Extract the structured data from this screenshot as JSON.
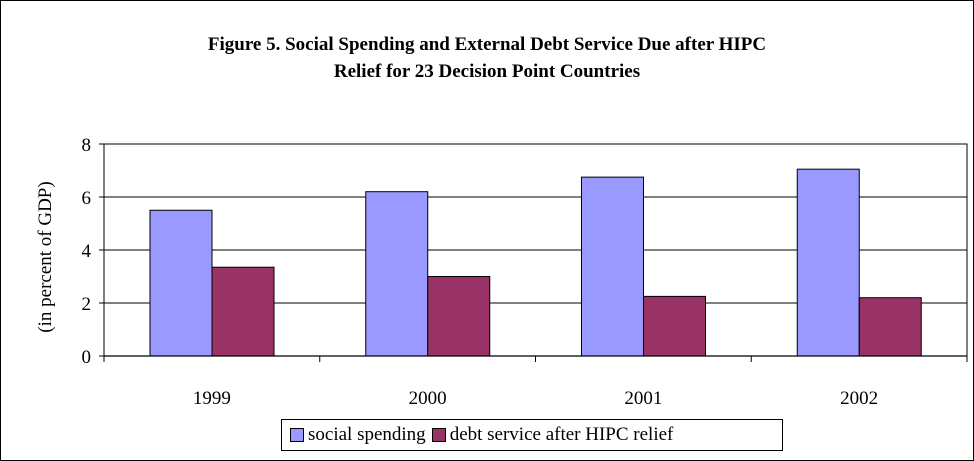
{
  "title_lines": [
    "Figure 5. Social Spending and External Debt Service Due after HIPC",
    "Relief for 23 Decision Point Countries"
  ],
  "colors": {
    "social_spending": "#9999ff",
    "debt_service": "#993366",
    "gridline": "#000000"
  },
  "chart_data": {
    "type": "bar",
    "title": "Figure 5. Social Spending and External Debt Service Due after HIPC Relief for 23 Decision Point Countries",
    "categories": [
      "1999",
      "2000",
      "2001",
      "2002"
    ],
    "series": [
      {
        "name": "social spending",
        "values": [
          5.5,
          6.2,
          6.75,
          7.05
        ]
      },
      {
        "name": "debt service after HIPC relief",
        "values": [
          3.35,
          3.0,
          2.25,
          2.2
        ]
      }
    ],
    "xlabel": "",
    "ylabel": "(in percent of GDP)",
    "ylim": [
      0,
      8
    ],
    "yticks": [
      "0",
      "2",
      "4",
      "6",
      "8"
    ],
    "grid": true,
    "legend_position": "bottom"
  }
}
